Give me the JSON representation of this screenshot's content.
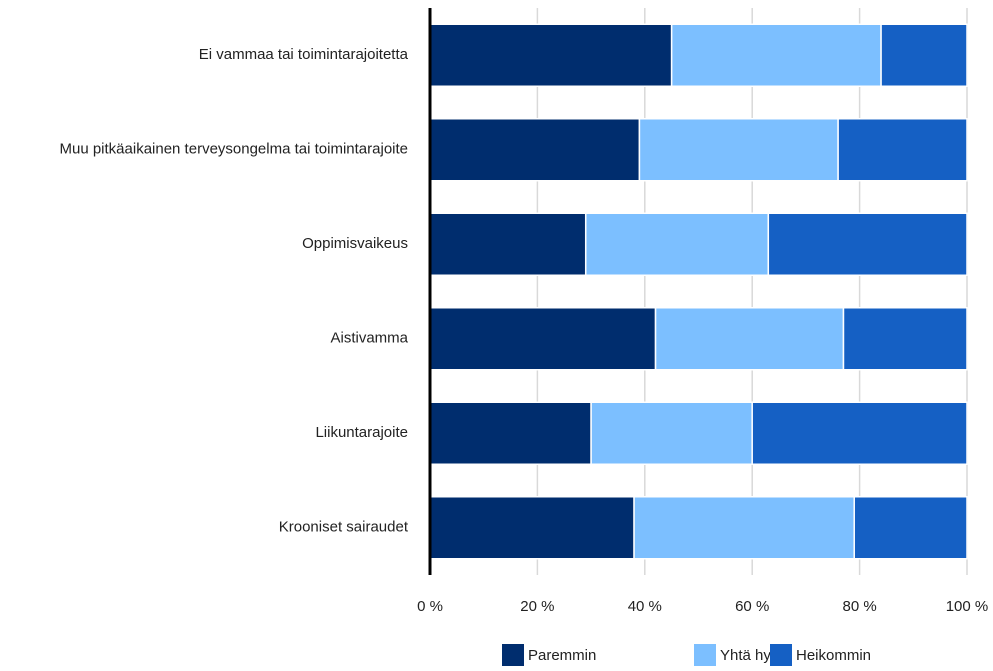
{
  "chart_data": {
    "type": "stacked_barh",
    "categories": [
      "Ei vammaa tai toimintarajoitetta",
      "Muu pitkäaikainen terveysongelma tai toimintarajoite",
      "Oppimisvaikeus",
      "Aistivamma",
      "Liikuntarajoite",
      "Krooniset sairaudet"
    ],
    "series": [
      {
        "name": "Paremmin",
        "color": "#002d6e",
        "values": [
          45,
          39,
          29,
          42,
          30,
          38
        ]
      },
      {
        "name": "Yhtä hyvin",
        "color": "#7cbfff",
        "values": [
          39,
          37,
          34,
          35,
          30,
          41
        ]
      },
      {
        "name": "Heikommin",
        "color": "#1560c4",
        "values": [
          16,
          24,
          37,
          23,
          40,
          21
        ]
      }
    ],
    "xlim": [
      0,
      100
    ],
    "xticks": [
      {
        "value": 0,
        "label": "0 %"
      },
      {
        "value": 20,
        "label": "20 %"
      },
      {
        "value": 40,
        "label": "40 %"
      },
      {
        "value": 60,
        "label": "60 %"
      },
      {
        "value": 80,
        "label": "80 %"
      },
      {
        "value": 100,
        "label": "100 %"
      }
    ],
    "grid": true,
    "legend": "bottom"
  }
}
